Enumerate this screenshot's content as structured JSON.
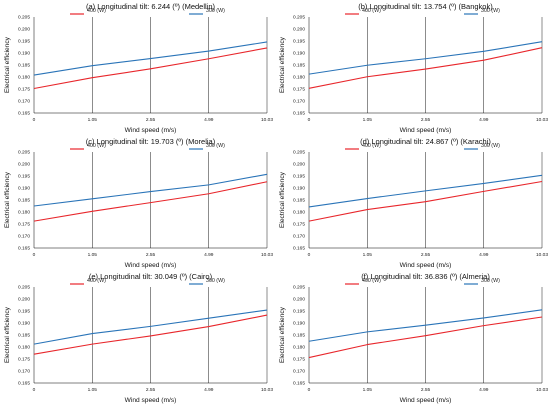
{
  "colors": {
    "series_400": "#e8262b",
    "series_300": "#2a74b8",
    "grid": "#000000",
    "text": "#111111"
  },
  "chart_data": [
    {
      "type": "line",
      "title": "(a) Longitudinal tilt: 6.244 (º) (Medellin)",
      "xlabel": "Wind speed (m/s)",
      "ylabel": "Electrical efficiency",
      "categories": [
        "0",
        "1.05",
        "2.55",
        "4.99",
        "10.03"
      ],
      "ylim": [
        0.165,
        0.205
      ],
      "yticks": [
        "0.205",
        "0.200",
        "0.195",
        "0.190",
        "0.185",
        "0.180",
        "0.175",
        "0.170",
        "0.165"
      ],
      "grid": "vertical",
      "legend_position": "top",
      "series": [
        {
          "name": "400 (W)",
          "color": "#e8262b",
          "values": [
            0.1752,
            0.1797,
            0.1834,
            0.1876,
            0.1921
          ]
        },
        {
          "name": "300 (W)",
          "color": "#2a74b8",
          "values": [
            0.1808,
            0.1847,
            0.1877,
            0.1908,
            0.1946
          ]
        }
      ]
    },
    {
      "type": "line",
      "title": "(b) Longitudinal tilt: 13.754 (º) (Bangkok)",
      "xlabel": "Wind speed (m/s)",
      "ylabel": "Electrical efficiency",
      "categories": [
        "0",
        "1.05",
        "2.55",
        "4.99",
        "10.03"
      ],
      "ylim": [
        0.165,
        0.205
      ],
      "yticks": [
        "0.205",
        "0.200",
        "0.195",
        "0.190",
        "0.185",
        "0.180",
        "0.175",
        "0.170",
        "0.165"
      ],
      "grid": "vertical",
      "legend_position": "top",
      "series": [
        {
          "name": "400 (W)",
          "color": "#e8262b",
          "values": [
            0.1753,
            0.1801,
            0.1833,
            0.187,
            0.1922
          ]
        },
        {
          "name": "300 (W)",
          "color": "#2a74b8",
          "values": [
            0.1812,
            0.1849,
            0.1876,
            0.1907,
            0.1947
          ]
        }
      ]
    },
    {
      "type": "line",
      "title": "(c) Longitudinal tilt: 19.703 (º) (Morelia)",
      "xlabel": "Wind speed (m/s)",
      "ylabel": "Electrical efficiency",
      "categories": [
        "0",
        "1.05",
        "2.55",
        "4.99",
        "10.03"
      ],
      "ylim": [
        0.165,
        0.205
      ],
      "yticks": [
        "0.205",
        "0.200",
        "0.195",
        "0.190",
        "0.185",
        "0.180",
        "0.175",
        "0.170",
        "0.165"
      ],
      "grid": "vertical",
      "legend_position": "top",
      "series": [
        {
          "name": "400 (W)",
          "color": "#e8262b",
          "values": [
            0.1762,
            0.1803,
            0.1839,
            0.1876,
            0.1926
          ]
        },
        {
          "name": "300 (W)",
          "color": "#2a74b8",
          "values": [
            0.1825,
            0.1855,
            0.1885,
            0.1913,
            0.1957
          ]
        }
      ]
    },
    {
      "type": "line",
      "title": "(d) Longitudinal tilt: 24.867 (º) (Karachi)",
      "xlabel": "Wind speed (m/s)",
      "ylabel": "Electrical efficiency",
      "categories": [
        "0",
        "1.05",
        "2.55",
        "4.99",
        "10.03"
      ],
      "ylim": [
        0.165,
        0.205
      ],
      "yticks": [
        "0.205",
        "0.200",
        "0.195",
        "0.190",
        "0.185",
        "0.180",
        "0.175",
        "0.170",
        "0.165"
      ],
      "grid": "vertical",
      "legend_position": "top",
      "series": [
        {
          "name": "400 (W)",
          "color": "#e8262b",
          "values": [
            0.1762,
            0.181,
            0.1843,
            0.1886,
            0.1927
          ]
        },
        {
          "name": "300 (W)",
          "color": "#2a74b8",
          "values": [
            0.1821,
            0.1856,
            0.1888,
            0.1919,
            0.1953
          ]
        }
      ]
    },
    {
      "type": "line",
      "title": "(e) Longitudinal tilt: 30.049 (º) (Cairo)",
      "xlabel": "Wind speed (m/s)",
      "ylabel": "Electrical efficiency",
      "categories": [
        "0",
        "1.05",
        "2.55",
        "4.99",
        "10.03"
      ],
      "ylim": [
        0.165,
        0.205
      ],
      "yticks": [
        "0.205",
        "0.200",
        "0.195",
        "0.190",
        "0.185",
        "0.180",
        "0.175",
        "0.170",
        "0.165"
      ],
      "grid": "vertical",
      "legend_position": "top",
      "series": [
        {
          "name": "400 (W)",
          "color": "#e8262b",
          "values": [
            0.177,
            0.1812,
            0.1846,
            0.1885,
            0.1933
          ]
        },
        {
          "name": "300 (W)",
          "color": "#2a74b8",
          "values": [
            0.1812,
            0.1856,
            0.1886,
            0.192,
            0.1954
          ]
        }
      ]
    },
    {
      "type": "line",
      "title": "(f) Longitudinal tilt: 36.836 (º) (Almeria)",
      "xlabel": "Wind speed (m/s)",
      "ylabel": "Electrical efficiency",
      "categories": [
        "0",
        "1.05",
        "2.55",
        "4.99",
        "10.03"
      ],
      "ylim": [
        0.165,
        0.205
      ],
      "yticks": [
        "0.205",
        "0.200",
        "0.195",
        "0.190",
        "0.185",
        "0.180",
        "0.175",
        "0.170",
        "0.165"
      ],
      "grid": "vertical",
      "legend_position": "top",
      "series": [
        {
          "name": "400 (W)",
          "color": "#e8262b",
          "values": [
            0.1756,
            0.181,
            0.1847,
            0.1889,
            0.1925
          ]
        },
        {
          "name": "300 (W)",
          "color": "#2a74b8",
          "values": [
            0.1824,
            0.1863,
            0.1891,
            0.1921,
            0.1955
          ]
        }
      ]
    }
  ]
}
